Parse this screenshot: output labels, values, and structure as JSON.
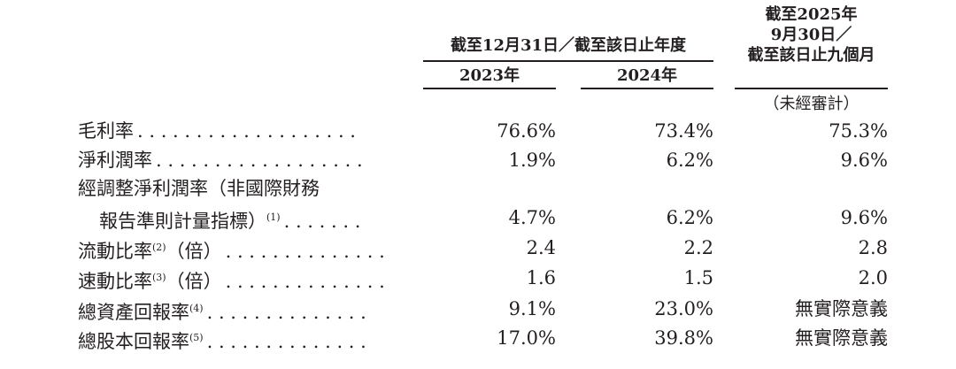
{
  "header": {
    "group_label": "截至12月31日／截至該日止年度",
    "col_2023": "2023年",
    "col_2024": "2024年",
    "col_2025_line1": "截至2025年",
    "col_2025_line2": "9月30日／",
    "col_2025_line3": "截至該日止九個月",
    "col_2025_note": "（未經審計）"
  },
  "rows": [
    {
      "label": "毛利率",
      "note": "",
      "suffix": "",
      "dots": ". . . . . . . . . . . . . . . . . . .",
      "values": [
        "76.6%",
        "73.4%",
        "75.3%"
      ]
    },
    {
      "label": "淨利潤率",
      "note": "",
      "suffix": "",
      "dots": ". . . . . . . . . . . . . . . . . .",
      "values": [
        "1.9%",
        "6.2%",
        "9.6%"
      ]
    },
    {
      "label": "經調整淨利潤率（非國際財務",
      "label2": "報告準則計量指標）",
      "note": "(1)",
      "suffix": "",
      "dots": ". . . . . . .",
      "values": [
        "4.7%",
        "6.2%",
        "9.6%"
      ]
    },
    {
      "label": "流動比率",
      "note": "(2)",
      "suffix": "（倍）",
      "dots": ". . . . . . . . . . . . . .",
      "values": [
        "2.4",
        "2.2",
        "2.8"
      ]
    },
    {
      "label": "速動比率",
      "note": "(3)",
      "suffix": "（倍）",
      "dots": ". . . . . . . . . . . . . .",
      "values": [
        "1.6",
        "1.5",
        "2.0"
      ]
    },
    {
      "label": "總資產回報率",
      "note": "(4)",
      "suffix": "",
      "dots": ". . . . . . . . . . . . . .",
      "values": [
        "9.1%",
        "23.0%",
        "無實際意義"
      ]
    },
    {
      "label": "總股本回報率",
      "note": "(5)",
      "suffix": "",
      "dots": ". . . . . . . . . . . . . .",
      "values": [
        "17.0%",
        "39.8%",
        "無實際意義"
      ]
    }
  ]
}
